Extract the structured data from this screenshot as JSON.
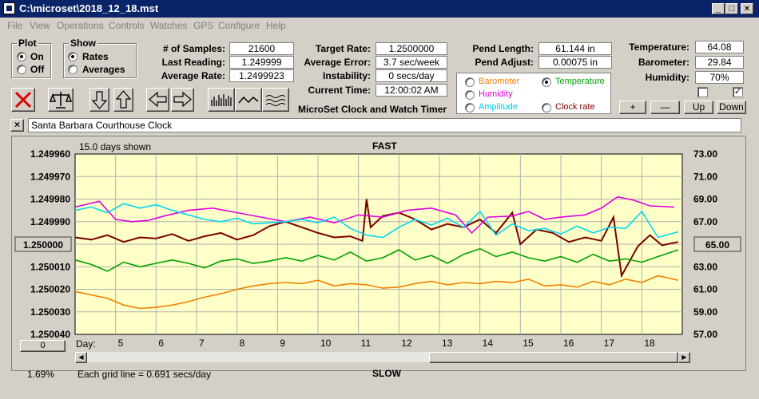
{
  "window": {
    "title": "C:\\microset\\2018_12_18.mst"
  },
  "menu": [
    "File",
    "View",
    "Operations",
    "Controls",
    "Watches",
    "GPS",
    "Configure",
    "Help"
  ],
  "plot_group": {
    "title": "Plot",
    "on_label": "On",
    "off_label": "Off",
    "selected": "On"
  },
  "show_group": {
    "title": "Show",
    "rates_label": "Rates",
    "averages_label": "Averages",
    "selected": "Rates"
  },
  "stats": {
    "samples_label": "# of Samples:",
    "samples": "21600",
    "last_reading_label": "Last Reading:",
    "last_reading": "1.249999",
    "average_rate_label": "Average Rate:",
    "average_rate": "1.2499923",
    "target_rate_label": "Target Rate:",
    "target_rate": "1.2500000",
    "average_error_label": "Average Error:",
    "average_error": "3.7 sec/week",
    "instability_label": "Instability:",
    "instability": "0 secs/day",
    "current_time_label": "Current Time:",
    "current_time": "12:00:02 AM",
    "pend_length_label": "Pend Length:",
    "pend_length": "61.144 in",
    "pend_adjust_label": "Pend Adjust:",
    "pend_adjust": "0.00075 in"
  },
  "app_name": "MicroSet Clock and Watch Timer",
  "env": {
    "temperature_label": "Temperature:",
    "temperature": "64.08",
    "barometer_label": "Barometer:",
    "barometer": "29.84",
    "humidity_label": "Humidity:",
    "humidity": "70%"
  },
  "plot_options": {
    "barometer": "Barometer",
    "temperature": "Temperature",
    "humidity": "Humidity",
    "amplitude": "Amplitude",
    "clock_rate": "Clock rate",
    "selected": "Temperature"
  },
  "adjust_buttons": {
    "plus": "+",
    "minus": "—",
    "up": "Up",
    "down": "Down"
  },
  "clock_name": "Santa Barbara Courthouse Clock",
  "colors": {
    "barometer": "#f08000",
    "temperature": "#00a000",
    "humidity": "#e000e0",
    "amplitude": "#00d8f0",
    "clock_rate": "#7a0000",
    "plot_bg": "#ffffc8"
  },
  "chart_data": {
    "type": "line",
    "days_shown": "15.0 days shown",
    "top_label": "FAST",
    "bottom_label": "SLOW",
    "grid_note": "Each grid line = 0.691 secs/day",
    "percent": "1.69%",
    "left_reset": "0",
    "day_label": "Day:",
    "x_ticks": [
      "5",
      "6",
      "7",
      "8",
      "9",
      "10",
      "11",
      "12",
      "13",
      "14",
      "15",
      "16",
      "17",
      "18"
    ],
    "left_axis_ticks": [
      "1.249960",
      "1.249970",
      "1.249980",
      "1.249990",
      "1.250000",
      "1.250010",
      "1.250020",
      "1.250030",
      "1.250040"
    ],
    "right_axis_ticks": [
      "73.00",
      "71.00",
      "69.00",
      "67.00",
      "65.00",
      "63.00",
      "61.00",
      "59.00",
      "57.00"
    ],
    "left_center_value": "1.250000",
    "right_center_value": "65.00",
    "xlim": [
      4,
      19
    ],
    "ylim_right": [
      57,
      73
    ],
    "series": [
      {
        "key": "clock_rate",
        "x": [
          4.0,
          4.4,
          4.8,
          5.2,
          5.6,
          6.0,
          6.4,
          6.8,
          7.2,
          7.6,
          8.0,
          8.4,
          8.8,
          9.2,
          9.6,
          10.0,
          10.4,
          10.8,
          11.1,
          11.2,
          11.3,
          11.6,
          12.0,
          12.4,
          12.8,
          13.2,
          13.6,
          14.0,
          14.4,
          14.8,
          15.0,
          15.4,
          15.8,
          16.2,
          16.6,
          17.0,
          17.3,
          17.5,
          17.7,
          17.9,
          18.2,
          18.5,
          18.9
        ],
        "y": [
          65.6,
          65.4,
          65.8,
          65.2,
          65.6,
          65.5,
          65.9,
          65.3,
          65.7,
          66.0,
          65.4,
          65.8,
          66.6,
          67.0,
          66.5,
          66.0,
          65.6,
          65.7,
          65.3,
          69.0,
          66.5,
          67.5,
          67.8,
          67.2,
          66.3,
          66.8,
          66.5,
          67.2,
          66.0,
          67.8,
          65.0,
          66.3,
          66.0,
          65.2,
          65.6,
          65.3,
          67.4,
          62.2,
          63.5,
          64.8,
          65.8,
          64.9,
          65.2
        ]
      },
      {
        "key": "humidity",
        "x": [
          4.0,
          4.6,
          5.0,
          5.4,
          5.8,
          6.2,
          6.8,
          7.4,
          8.0,
          8.6,
          9.2,
          9.8,
          10.4,
          11.0,
          11.6,
          12.2,
          12.8,
          13.4,
          13.8,
          14.2,
          14.8,
          15.2,
          15.6,
          16.0,
          16.6,
          17.0,
          17.4,
          17.8,
          18.2,
          18.8
        ],
        "y": [
          68.3,
          68.8,
          67.2,
          67.0,
          67.1,
          67.5,
          68.0,
          68.2,
          67.8,
          67.4,
          67.0,
          67.4,
          66.9,
          67.6,
          67.4,
          68.0,
          68.2,
          67.6,
          66.0,
          67.4,
          67.5,
          67.9,
          67.2,
          67.4,
          67.6,
          68.2,
          69.2,
          68.9,
          68.4,
          68.3
        ]
      },
      {
        "key": "amplitude",
        "x": [
          4.0,
          4.4,
          4.8,
          5.2,
          5.6,
          6.0,
          6.4,
          6.8,
          7.2,
          7.6,
          8.0,
          8.4,
          8.8,
          9.2,
          9.6,
          10.0,
          10.4,
          10.8,
          11.2,
          11.6,
          12.0,
          12.4,
          12.8,
          13.2,
          13.6,
          14.0,
          14.4,
          14.8,
          15.2,
          15.6,
          16.0,
          16.4,
          16.8,
          17.2,
          17.6,
          18.0,
          18.4,
          18.9
        ],
        "y": [
          68.0,
          68.3,
          67.8,
          68.6,
          68.2,
          68.5,
          68.0,
          67.6,
          67.2,
          67.0,
          67.3,
          66.8,
          66.9,
          67.0,
          67.2,
          66.9,
          67.4,
          66.4,
          65.8,
          65.6,
          66.5,
          67.2,
          66.7,
          67.3,
          66.5,
          67.9,
          65.8,
          66.8,
          66.2,
          66.4,
          65.9,
          66.6,
          66.0,
          66.5,
          66.4,
          67.9,
          65.6,
          66.1
        ]
      },
      {
        "key": "temperature",
        "x": [
          4.0,
          4.4,
          4.8,
          5.2,
          5.6,
          6.0,
          6.4,
          6.8,
          7.2,
          7.6,
          8.0,
          8.4,
          8.8,
          9.2,
          9.6,
          10.0,
          10.4,
          10.8,
          11.2,
          11.6,
          12.0,
          12.4,
          12.8,
          13.2,
          13.6,
          14.0,
          14.4,
          14.8,
          15.2,
          15.6,
          16.0,
          16.4,
          16.8,
          17.2,
          17.6,
          18.0,
          18.4,
          18.9
        ],
        "y": [
          63.6,
          63.2,
          62.6,
          63.4,
          63.0,
          63.3,
          63.6,
          63.3,
          62.9,
          63.5,
          63.7,
          63.3,
          63.5,
          63.8,
          63.5,
          64.0,
          63.6,
          64.3,
          63.5,
          63.8,
          64.5,
          63.6,
          64.0,
          63.3,
          64.1,
          64.6,
          63.9,
          64.3,
          63.8,
          63.5,
          63.9,
          63.4,
          64.1,
          63.5,
          63.7,
          63.4,
          63.9,
          64.5
        ]
      },
      {
        "key": "barometer",
        "x": [
          4.0,
          4.4,
          4.8,
          5.2,
          5.6,
          6.0,
          6.4,
          6.8,
          7.2,
          7.6,
          8.0,
          8.4,
          8.8,
          9.2,
          9.6,
          10.0,
          10.4,
          10.8,
          11.2,
          11.6,
          12.0,
          12.4,
          12.8,
          13.2,
          13.6,
          14.0,
          14.4,
          14.8,
          15.2,
          15.6,
          16.0,
          16.4,
          16.8,
          17.2,
          17.6,
          18.0,
          18.4,
          18.9
        ],
        "y": [
          60.8,
          60.5,
          60.2,
          59.6,
          59.3,
          59.4,
          59.6,
          59.9,
          60.3,
          60.6,
          61.0,
          61.3,
          61.5,
          61.6,
          61.5,
          61.8,
          61.3,
          61.5,
          61.4,
          61.1,
          61.2,
          61.5,
          61.7,
          61.4,
          61.6,
          61.5,
          61.7,
          61.6,
          61.9,
          61.3,
          61.4,
          61.2,
          61.7,
          61.4,
          61.9,
          61.6,
          62.2,
          61.8
        ]
      }
    ]
  }
}
